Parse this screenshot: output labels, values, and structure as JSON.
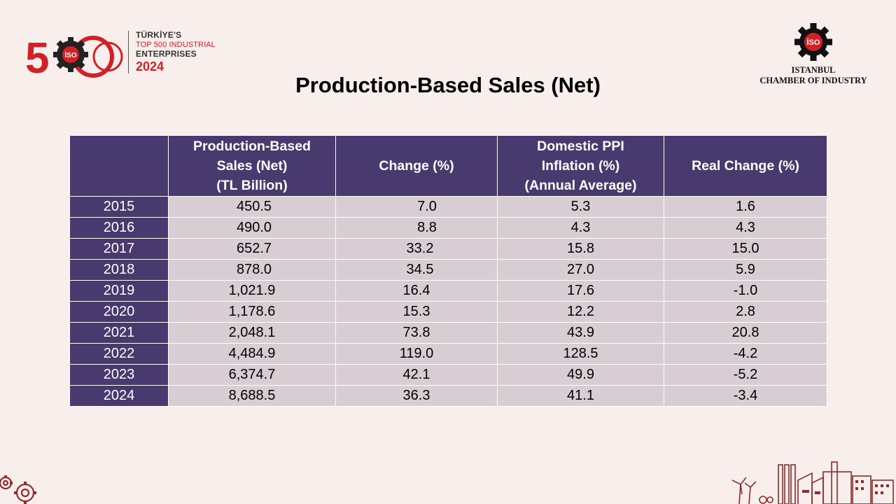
{
  "logo_left": {
    "big_number": "500",
    "badge": "İSO",
    "line1": "TÜRKİYE'S",
    "line2": "TOP 500 INDUSTRIAL",
    "line3": "ENTERPRISES",
    "line4": "2024"
  },
  "logo_right": {
    "badge": "İSO",
    "line1": "ISTANBUL",
    "line2": "CHAMBER OF INDUSTRY"
  },
  "title": "Production-Based Sales (Net)",
  "table": {
    "headers": {
      "col0": "",
      "col1": [
        "Production-Based",
        "Sales (Net)",
        "(TL Billion)"
      ],
      "col2": [
        "Change (%)"
      ],
      "col3": [
        "Domestic PPI",
        "Inflation (%)",
        "(Annual Average)"
      ],
      "col4": [
        "Real Change (%)"
      ]
    },
    "rows": [
      [
        "2015",
        "450.5",
        "7.0",
        "5.3",
        "1.6"
      ],
      [
        "2016",
        "490.0",
        "8.8",
        "4.3",
        "4.3"
      ],
      [
        "2017",
        "652.7",
        "33.2",
        "15.8",
        "15.0"
      ],
      [
        "2018",
        "878.0",
        "34.5",
        "27.0",
        "5.9"
      ],
      [
        "2019",
        "1,021.9",
        "16.4",
        "17.6",
        "-1.0"
      ],
      [
        "2020",
        "1,178.6",
        "15.3",
        "12.2",
        "2.8"
      ],
      [
        "2021",
        "2,048.1",
        "73.8",
        "43.9",
        "20.8"
      ],
      [
        "2022",
        "4,484.9",
        "119.0",
        "128.5",
        "-4.2"
      ],
      [
        "2023",
        "6,374.7",
        "42.1",
        "49.9",
        "-5.2"
      ],
      [
        "2024",
        "8,688.5",
        "36.3",
        "41.1",
        "-3.4"
      ]
    ]
  },
  "colors": {
    "background": "#f8efed",
    "header_bg": "#48396f",
    "cell_bg": "#d7cdd3",
    "brand_red": "#d32027"
  }
}
